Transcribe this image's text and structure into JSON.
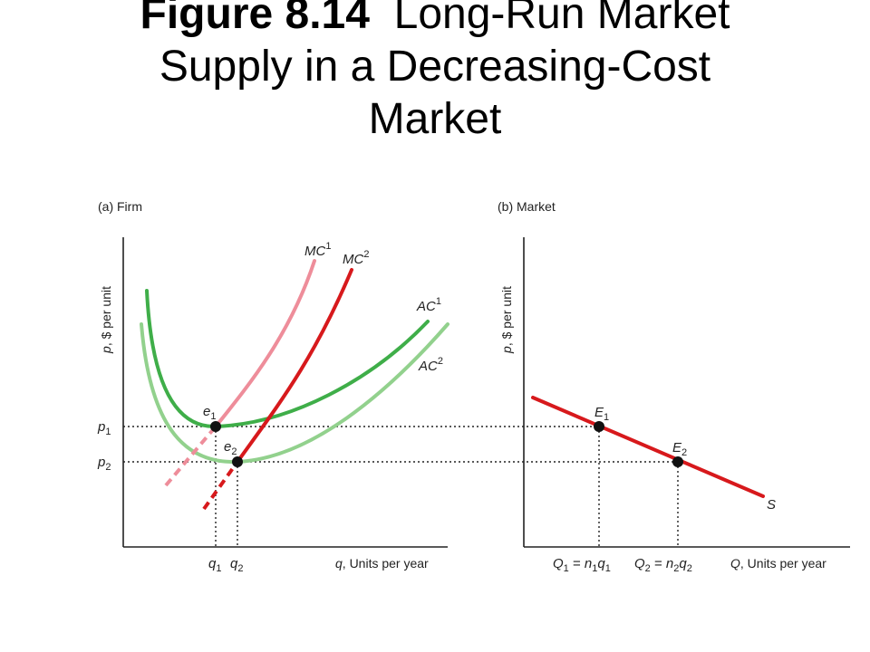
{
  "title": {
    "figure_label": "Figure 8.14",
    "line1_rest": "Long-Run Market",
    "line2": "Supply in a Decreasing-Cost",
    "line3": "Market"
  },
  "panel_a": {
    "label": "(a) Firm",
    "y_axis": {
      "var": "p",
      "rest": ", $ per unit"
    },
    "x_axis": {
      "var": "q",
      "rest": ", Units per year"
    },
    "curves": {
      "mc1": {
        "base": "MC",
        "sup": "1",
        "color": "#ee8d9a"
      },
      "mc2": {
        "base": "MC",
        "sup": "2",
        "color": "#d7191c"
      },
      "ac1": {
        "base": "AC",
        "sup": "1",
        "color": "#3fae49"
      },
      "ac2": {
        "base": "AC",
        "sup": "2",
        "color": "#92d18d"
      }
    },
    "points": {
      "e1": {
        "base": "e",
        "sub": "1"
      },
      "e2": {
        "base": "e",
        "sub": "2"
      }
    },
    "price_ticks": {
      "p1": {
        "base": "p",
        "sub": "1"
      },
      "p2": {
        "base": "p",
        "sub": "2"
      }
    },
    "quantity_ticks": {
      "q1": {
        "base": "q",
        "sub": "1"
      },
      "q2": {
        "base": "q",
        "sub": "2"
      }
    }
  },
  "panel_b": {
    "label": "(b) Market",
    "y_axis": {
      "var": "p",
      "rest": ", $ per unit"
    },
    "x_axis": {
      "var": "Q",
      "rest": ", Units per year"
    },
    "curves": {
      "s": {
        "label": "S",
        "color": "#d7191c"
      }
    },
    "points": {
      "E1": {
        "base": "E",
        "sub": "1"
      },
      "E2": {
        "base": "E",
        "sub": "2"
      }
    },
    "quantity_ticks": {
      "Q1": {
        "lhs": "Q",
        "lhs_sub": "1",
        "eq": " = ",
        "n": "n",
        "n_sub": "1",
        "q": "q",
        "q_sub": "1"
      },
      "Q2": {
        "lhs": "Q",
        "lhs_sub": "2",
        "eq": " = ",
        "n": "n",
        "n_sub": "2",
        "q": "q",
        "q_sub": "2"
      }
    }
  }
}
